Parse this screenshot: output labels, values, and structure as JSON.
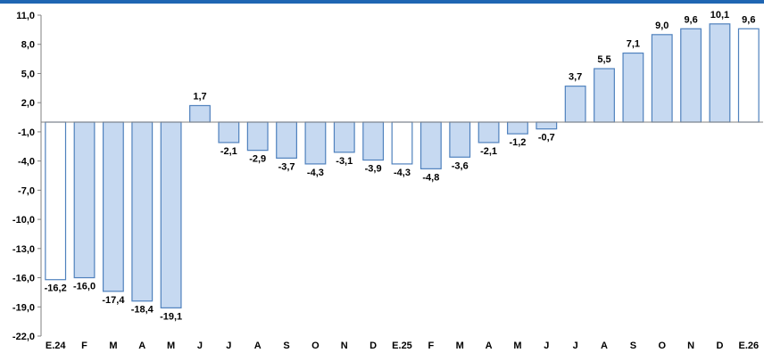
{
  "chart_data": {
    "type": "bar",
    "categories": [
      "E.24",
      "F",
      "M",
      "A",
      "M",
      "J",
      "J",
      "A",
      "S",
      "O",
      "N",
      "D",
      "E.25",
      "F",
      "M",
      "A",
      "M",
      "J",
      "J",
      "A",
      "S",
      "O",
      "N",
      "D",
      "E.26"
    ],
    "values": [
      -16.2,
      -16.0,
      -17.4,
      -18.4,
      -19.1,
      1.7,
      -2.1,
      -2.9,
      -3.7,
      -4.3,
      -3.1,
      -3.9,
      -4.3,
      -4.8,
      -3.6,
      -2.1,
      -1.2,
      -0.7,
      3.7,
      5.5,
      7.1,
      9.0,
      9.6,
      10.1,
      9.6
    ],
    "data_labels": [
      "-16,2",
      "-16,0",
      "-17,4",
      "-18,4",
      "-19,1",
      "1,7",
      "-2,1",
      "-2,9",
      "-3,7",
      "-4,3",
      "-3,1",
      "-3,9",
      "-4,3",
      "-4,8",
      "-3,6",
      "-2,1",
      "-1,2",
      "-0,7",
      "3,7",
      "5,5",
      "7,1",
      "9,0",
      "9,6",
      "10,1",
      "9,6"
    ],
    "highlight": [
      true,
      false,
      false,
      false,
      false,
      false,
      false,
      false,
      false,
      false,
      false,
      false,
      true,
      false,
      false,
      false,
      false,
      false,
      false,
      false,
      false,
      false,
      false,
      false,
      true
    ],
    "ylim": [
      -22,
      11
    ],
    "yticks": [
      11,
      8,
      5,
      2,
      -1,
      -4,
      -7,
      -10,
      -13,
      -16,
      -19,
      -22
    ],
    "ytick_labels": [
      "11,0",
      "8,0",
      "5,0",
      "2,0",
      "-1,0",
      "-4,0",
      "-7,0",
      "-10,0",
      "-13,0",
      "-16,0",
      "-19,0",
      "-22,0"
    ],
    "baseline": 0,
    "grid": false,
    "title": "",
    "xlabel": "",
    "ylabel": "",
    "colors": {
      "bar_fill": "#c6d9f1",
      "bar_stroke": "#4f81bd",
      "highlight_fill": "#ffffff",
      "axis": "#808080",
      "top_rule": "#1f66b3"
    }
  }
}
